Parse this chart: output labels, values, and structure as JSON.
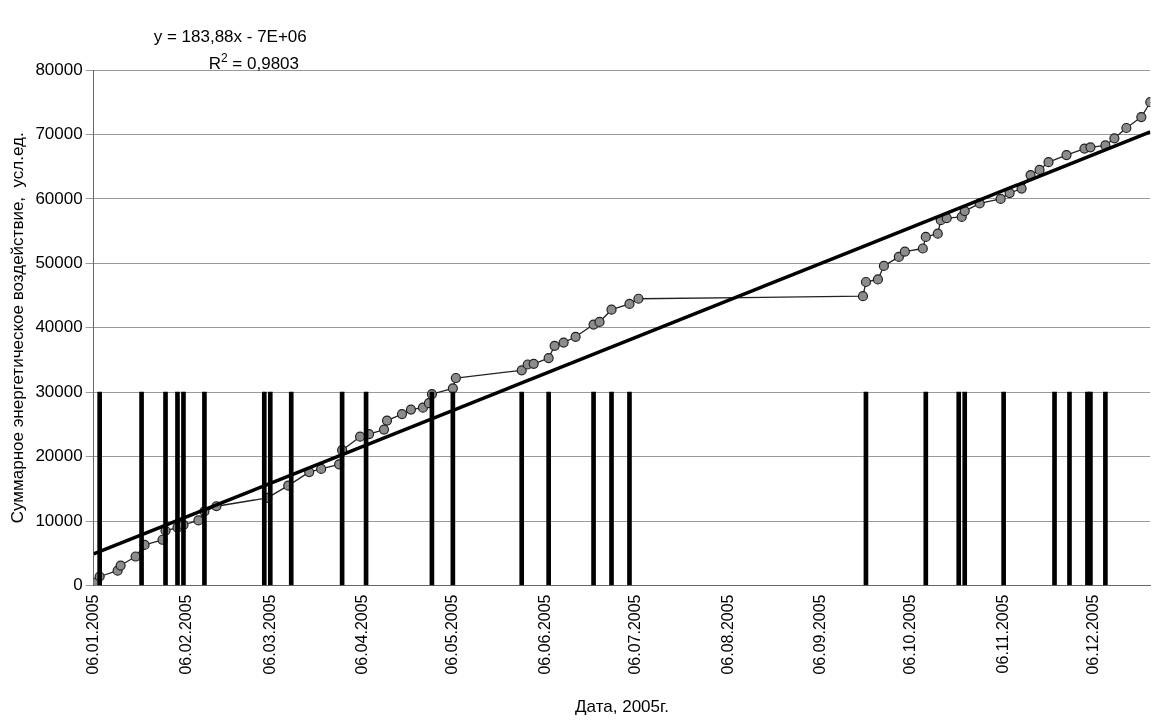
{
  "chart_data": {
    "type": "line",
    "xlabel": "Дата, 2005г.",
    "ylabel": "Суммарное энергетическое воздействие,  усл.ед.",
    "annotations": [
      "y = 183,88x - 7E+06",
      "R$^{2}$ = 0,9803"
    ],
    "xlim": [
      "2005-01-06",
      "2005-12-25"
    ],
    "xticks": [
      {
        "value": "2005-01-06",
        "label": "06.01.2005"
      },
      {
        "value": "2005-02-06",
        "label": "06.02.2005"
      },
      {
        "value": "2005-03-06",
        "label": "06.03.2005"
      },
      {
        "value": "2005-04-06",
        "label": "06.04.2005"
      },
      {
        "value": "2005-05-06",
        "label": "06.05.2005"
      },
      {
        "value": "2005-06-06",
        "label": "06.06.2005"
      },
      {
        "value": "2005-07-06",
        "label": "06.07.2005"
      },
      {
        "value": "2005-08-06",
        "label": "06.08.2005"
      },
      {
        "value": "2005-09-06",
        "label": "06.09.2005"
      },
      {
        "value": "2005-10-06",
        "label": "06.10.2005"
      },
      {
        "value": "2005-11-06",
        "label": "06.11.2005"
      },
      {
        "value": "2005-12-06",
        "label": "06.12.2005"
      }
    ],
    "ylim": [
      0,
      80000
    ],
    "yticks": [
      0,
      10000,
      20000,
      30000,
      40000,
      50000,
      60000,
      70000,
      80000
    ],
    "grid": "y",
    "marker": "circle",
    "line_style": "solid",
    "series": [
      {
        "type": "bar",
        "color": "#000000",
        "x": [
          "2005-01-08",
          "2005-01-22",
          "2005-01-30",
          "2005-02-03",
          "2005-02-05",
          "2005-02-12",
          "2005-03-04",
          "2005-03-06",
          "2005-03-13",
          "2005-03-30",
          "2005-04-07",
          "2005-04-29",
          "2005-05-06",
          "2005-05-29",
          "2005-06-07",
          "2005-06-22",
          "2005-06-28",
          "2005-07-04",
          "2005-09-21",
          "2005-10-11",
          "2005-10-22",
          "2005-10-24",
          "2005-11-06",
          "2005-11-23",
          "2005-11-28",
          "2005-12-04",
          "2005-12-05",
          "2005-12-10"
        ],
        "values": [
          30000,
          30000,
          30000,
          30000,
          30000,
          30000,
          30000,
          30000,
          30000,
          30000,
          30000,
          30000,
          30000,
          30000,
          30000,
          30000,
          30000,
          30000,
          30000,
          30000,
          30000,
          30000,
          30000,
          30000,
          30000,
          30000,
          30000,
          30000
        ]
      },
      {
        "color": "#8c8c8c",
        "x": [
          "2005-01-07",
          "2005-01-08",
          "2005-01-14",
          "2005-01-15",
          "2005-01-20",
          "2005-01-23",
          "2005-01-29",
          "2005-01-30",
          "2005-02-03",
          "2005-02-05",
          "2005-02-10",
          "2005-02-12",
          "2005-02-16",
          "2005-03-05",
          "2005-03-12",
          "2005-03-19",
          "2005-03-23",
          "2005-03-29",
          "2005-03-30",
          "2005-04-05",
          "2005-04-08",
          "2005-04-13",
          "2005-04-14",
          "2005-04-19",
          "2005-04-22",
          "2005-04-26",
          "2005-04-28",
          "2005-04-29",
          "2005-05-06",
          "2005-05-07",
          "2005-05-29",
          "2005-05-31",
          "2005-06-02",
          "2005-06-07",
          "2005-06-09",
          "2005-06-12",
          "2005-06-16",
          "2005-06-22",
          "2005-06-24",
          "2005-06-28",
          "2005-07-04",
          "2005-07-07",
          "2005-09-20",
          "2005-09-21",
          "2005-09-25",
          "2005-09-27",
          "2005-10-02",
          "2005-10-04",
          "2005-10-10",
          "2005-10-11",
          "2005-10-15",
          "2005-10-16",
          "2005-10-18",
          "2005-10-23",
          "2005-10-24",
          "2005-10-29",
          "2005-11-05",
          "2005-11-08",
          "2005-11-12",
          "2005-11-15",
          "2005-11-18",
          "2005-11-21",
          "2005-11-27",
          "2005-12-03",
          "2005-12-05",
          "2005-12-10",
          "2005-12-13",
          "2005-12-17",
          "2005-12-22",
          "2005-12-25"
        ],
        "values": [
          500,
          1400,
          2300,
          3100,
          4500,
          6300,
          7100,
          8500,
          9000,
          9400,
          10100,
          11500,
          12300,
          13600,
          15500,
          17600,
          18100,
          18800,
          21000,
          23100,
          23500,
          24200,
          25600,
          26600,
          27300,
          27600,
          28300,
          29700,
          30600,
          32200,
          33400,
          34300,
          34400,
          35300,
          37200,
          37700,
          38600,
          40500,
          40900,
          42800,
          43700,
          44500,
          44900,
          47100,
          47500,
          49600,
          51000,
          51800,
          52300,
          54100,
          54600,
          56700,
          57000,
          57200,
          58100,
          59300,
          60000,
          60900,
          61600,
          63700,
          64500,
          65700,
          66800,
          67800,
          68000,
          68300,
          69400,
          71000,
          72700,
          75000
        ]
      },
      {
        "marker": "none",
        "color": "#000000",
        "x": [
          "2005-01-06",
          "2005-12-25"
        ],
        "values": [
          4900,
          70400
        ]
      }
    ]
  }
}
